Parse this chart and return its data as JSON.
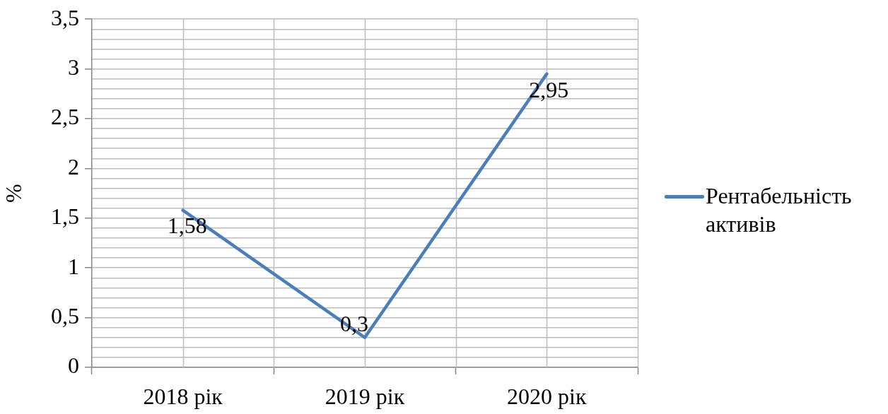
{
  "chart_data": {
    "type": "line",
    "categories": [
      "2018 рік",
      "2019 рік",
      "2020 рік"
    ],
    "series": [
      {
        "name": "Рентабельність активів",
        "color": "#4a7ebb",
        "values": [
          1.58,
          0.3,
          2.95
        ],
        "value_labels": [
          "1,58",
          "0,3",
          "2,95"
        ]
      }
    ],
    "ylabel": "%",
    "ylim": [
      0,
      3.5
    ],
    "yticks": [
      0,
      {
        "value": 0.1,
        "label": null
      },
      {
        "value": 0.2,
        "label": null
      },
      {
        "value": 0.3,
        "label": null
      },
      {
        "value": 0.4,
        "label": null
      },
      {
        "value": 0.5,
        "label": "0,5"
      },
      {
        "value": 0.6,
        "label": null
      },
      {
        "value": 0.7,
        "label": null
      },
      {
        "value": 0.8,
        "label": null
      },
      {
        "value": 0.9,
        "label": null
      },
      1,
      {
        "value": 1.1,
        "label": null
      },
      {
        "value": 1.2,
        "label": null
      },
      {
        "value": 1.3,
        "label": null
      },
      {
        "value": 1.4,
        "label": null
      },
      {
        "value": 1.5,
        "label": "1,5"
      },
      {
        "value": 1.6,
        "label": null
      },
      {
        "value": 1.7,
        "label": null
      },
      {
        "value": 1.8,
        "label": null
      },
      {
        "value": 1.9,
        "label": null
      },
      2,
      {
        "value": 2.1,
        "label": null
      },
      {
        "value": 2.2,
        "label": null
      },
      {
        "value": 2.3,
        "label": null
      },
      {
        "value": 2.4,
        "label": null
      },
      {
        "value": 2.5,
        "label": "2,5"
      },
      {
        "value": 2.6,
        "label": null
      },
      {
        "value": 2.7,
        "label": null
      },
      {
        "value": 2.8,
        "label": null
      },
      {
        "value": 2.9,
        "label": null
      },
      3,
      {
        "value": 3.1,
        "label": null
      },
      {
        "value": 3.2,
        "label": null
      },
      {
        "value": 3.3,
        "label": null
      },
      {
        "value": 3.4,
        "label": null
      },
      {
        "value": 3.5,
        "label": "3,5"
      }
    ],
    "grid": true,
    "legend": "right",
    "marker": "none",
    "line_style": "solid"
  }
}
